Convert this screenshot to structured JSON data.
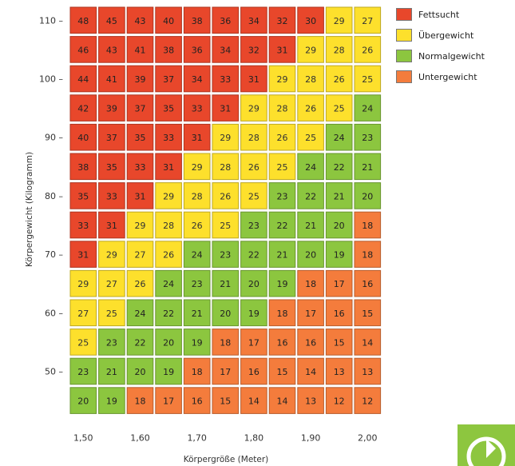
{
  "chart_data": {
    "type": "heatmap",
    "xlabel": "Körpergröße (Meter)",
    "ylabel": "Körpergewicht (Kilogramm)",
    "x_values": [
      1.5,
      1.55,
      1.6,
      1.65,
      1.7,
      1.75,
      1.8,
      1.85,
      1.9,
      1.95,
      2.0
    ],
    "x_tick_labels": [
      {
        "x": 1.5,
        "label": "1,50"
      },
      {
        "x": 1.6,
        "label": "1,60"
      },
      {
        "x": 1.7,
        "label": "1,70"
      },
      {
        "x": 1.8,
        "label": "1,80"
      },
      {
        "x": 1.9,
        "label": "1,90"
      },
      {
        "x": 2.0,
        "label": "2,00"
      }
    ],
    "y_values": [
      110,
      105,
      100,
      95,
      90,
      85,
      80,
      75,
      70,
      65,
      60,
      55,
      50,
      45
    ],
    "y_tick_labels": [
      {
        "y": 110,
        "label": "110 –"
      },
      {
        "y": 100,
        "label": "100 –"
      },
      {
        "y": 90,
        "label": "90 –"
      },
      {
        "y": 80,
        "label": "80 –"
      },
      {
        "y": 70,
        "label": "70 –"
      },
      {
        "y": 60,
        "label": "60 –"
      },
      {
        "y": 50,
        "label": "50 –"
      }
    ],
    "values": [
      [
        48,
        45,
        43,
        40,
        38,
        36,
        34,
        32,
        30,
        29,
        27
      ],
      [
        46,
        43,
        41,
        38,
        36,
        34,
        32,
        31,
        29,
        28,
        26
      ],
      [
        44,
        41,
        39,
        37,
        34,
        33,
        31,
        29,
        28,
        26,
        25
      ],
      [
        42,
        39,
        37,
        35,
        33,
        31,
        29,
        28,
        26,
        25,
        24
      ],
      [
        40,
        37,
        35,
        33,
        31,
        29,
        28,
        26,
        25,
        24,
        23
      ],
      [
        38,
        35,
        33,
        31,
        29,
        28,
        26,
        25,
        24,
        22,
        21
      ],
      [
        35,
        33,
        31,
        29,
        28,
        26,
        25,
        23,
        22,
        21,
        20
      ],
      [
        33,
        31,
        29,
        28,
        26,
        25,
        23,
        22,
        21,
        20,
        18
      ],
      [
        31,
        29,
        27,
        26,
        24,
        23,
        22,
        21,
        20,
        19,
        18
      ],
      [
        29,
        27,
        26,
        24,
        23,
        21,
        20,
        19,
        18,
        17,
        16
      ],
      [
        27,
        25,
        24,
        22,
        21,
        20,
        19,
        18,
        17,
        16,
        15
      ],
      [
        25,
        23,
        22,
        20,
        19,
        18,
        17,
        16,
        16,
        15,
        14
      ],
      [
        23,
        21,
        20,
        19,
        18,
        17,
        16,
        15,
        14,
        13,
        13
      ],
      [
        20,
        19,
        18,
        17,
        16,
        15,
        14,
        14,
        13,
        12,
        12
      ]
    ],
    "categories": [
      {
        "name": "Fettsucht",
        "min": 30,
        "color": "#e8472b"
      },
      {
        "name": "Übergewicht",
        "min": 25,
        "color": "#fde02c"
      },
      {
        "name": "Normalgewicht",
        "min": 19,
        "color": "#8cc63f"
      },
      {
        "name": "Untergewicht",
        "min": 0,
        "color": "#f47c3c"
      }
    ],
    "legend_position": "top-right",
    "grid": false
  },
  "legend": {
    "items": [
      {
        "label": "Fettsucht",
        "color": "#e8472b"
      },
      {
        "label": "Übergewicht",
        "color": "#fde02c"
      },
      {
        "label": "Normalgewicht",
        "color": "#8cc63f"
      },
      {
        "label": "Untergewicht",
        "color": "#f47c3c"
      }
    ]
  },
  "logo": {
    "name": "brand-logo-icon",
    "color": "#8dc63f"
  }
}
